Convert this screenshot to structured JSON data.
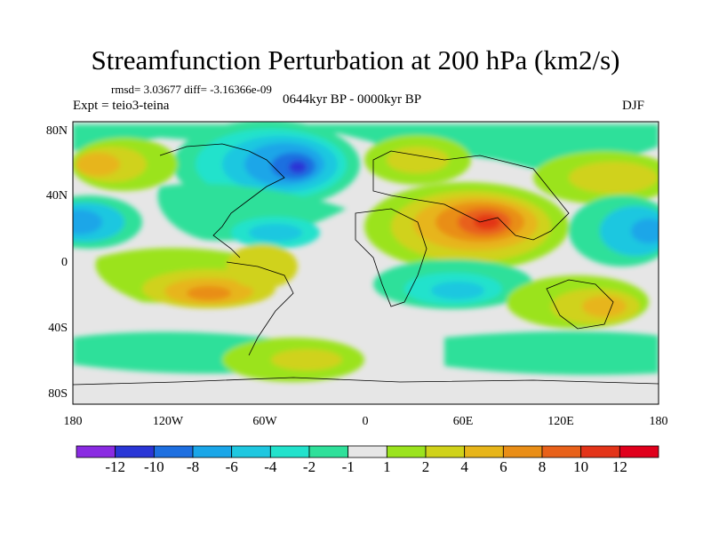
{
  "title": "Streamfunction Perturbation at 200 hPa (km2/s)",
  "stats": "rmsd= 3.03677 diff= -3.16366e-09",
  "experiment": "Expt = teio3-teina",
  "period": "0644kyr BP - 0000kyr BP",
  "season": "DJF",
  "lat_labels": [
    "80N",
    "40N",
    "0",
    "40S",
    "80S"
  ],
  "lon_labels": [
    "180",
    "120W",
    "60W",
    "0",
    "60E",
    "120E",
    "180"
  ],
  "colorbar": {
    "labels": [
      "-12",
      "-10",
      "-8",
      "-6",
      "-4",
      "-2",
      "-1",
      "1",
      "2",
      "4",
      "6",
      "8",
      "10",
      "12"
    ],
    "colors": [
      "#8a2be2",
      "#2a36d6",
      "#1e6fe0",
      "#1aa6e8",
      "#1fc7e0",
      "#22e2cc",
      "#2fe09a",
      "#e6e6e6",
      "#9be31e",
      "#d0d21a",
      "#e7b51a",
      "#e98e17",
      "#e8611a",
      "#e33419",
      "#e0001c"
    ]
  }
}
